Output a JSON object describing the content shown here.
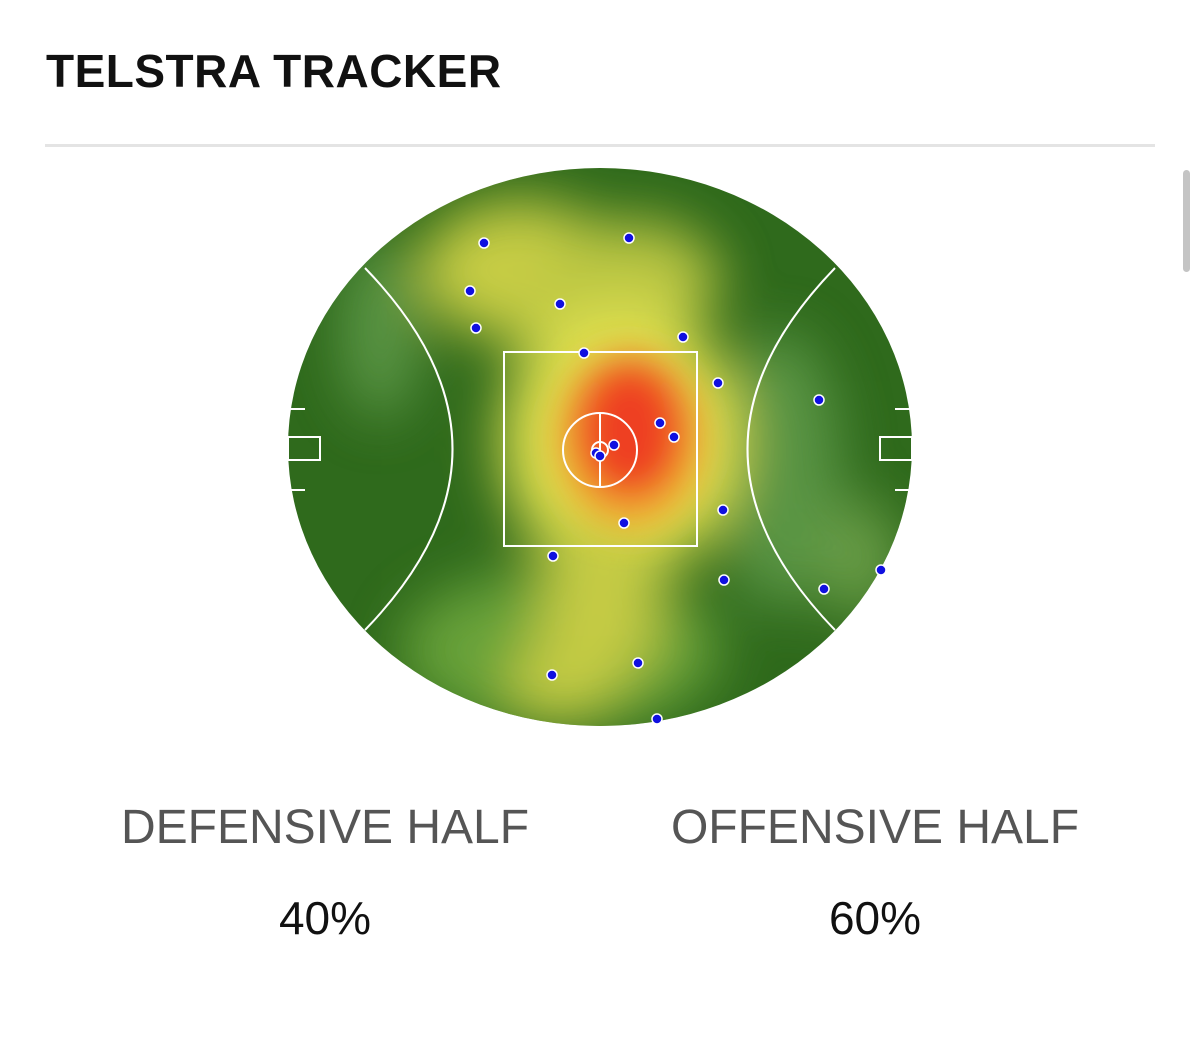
{
  "header": {
    "title": "TELSTRA TRACKER"
  },
  "stats": [
    {
      "label": "DEFENSIVE HALF",
      "value": "40%"
    },
    {
      "label": "OFFENSIVE HALF",
      "value": "60%"
    }
  ]
}
